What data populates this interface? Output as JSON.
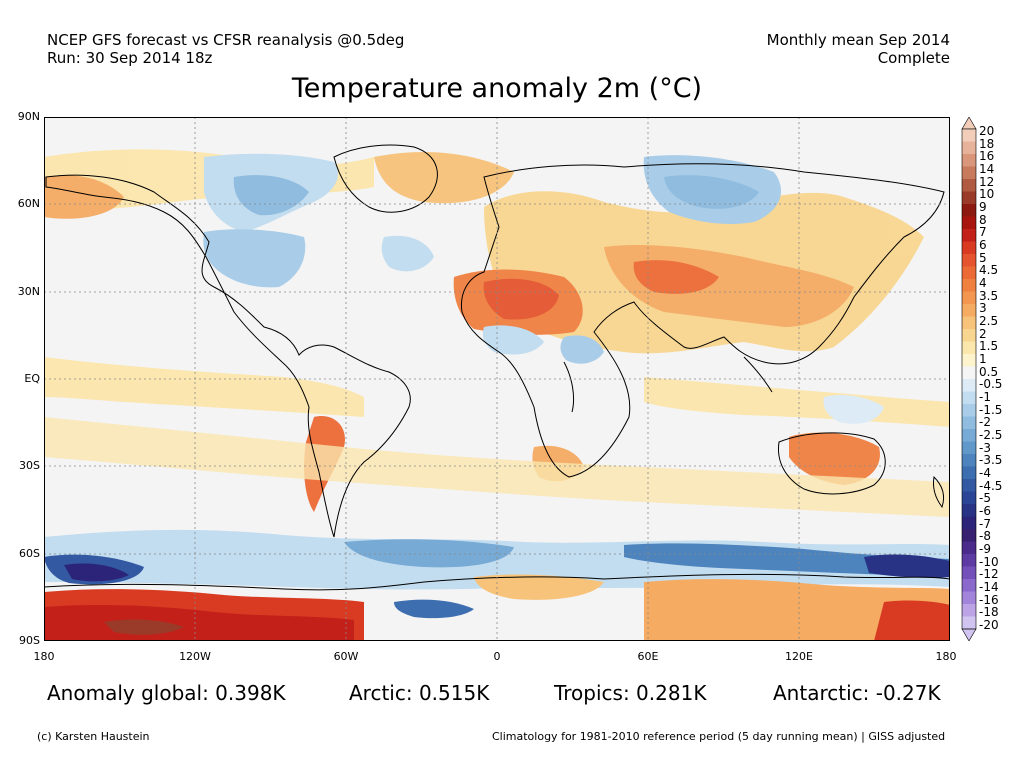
{
  "header": {
    "source_line": "NCEP GFS forecast vs CFSR reanalysis @0.5deg",
    "run_line": "Run: 30 Sep 2014 18z",
    "period_line": "Monthly mean Sep 2014",
    "status_line": "Complete"
  },
  "title": "Temperature anomaly 2m (°C)",
  "axes": {
    "lat_labels": [
      "90N",
      "60N",
      "30N",
      "EQ",
      "30S",
      "60S",
      "90S"
    ],
    "lon_labels": [
      "180",
      "120W",
      "60W",
      "0",
      "60E",
      "120E",
      "180"
    ]
  },
  "colorbar": {
    "labels": [
      "20",
      "18",
      "16",
      "14",
      "12",
      "10",
      "9",
      "8",
      "7",
      "6",
      "5",
      "4.5",
      "4",
      "3.5",
      "3",
      "2.5",
      "2",
      "1.5",
      "1",
      "0.5",
      "-0.5",
      "-1",
      "-1.5",
      "-2",
      "-2.5",
      "-3",
      "-3.5",
      "-4",
      "-4.5",
      "-5",
      "-6",
      "-7",
      "-8",
      "-9",
      "-10",
      "-12",
      "-14",
      "-16",
      "-18",
      "-20"
    ],
    "colors": [
      "#f2cdb9",
      "#e6b39a",
      "#d9967a",
      "#c87a5d",
      "#b15a42",
      "#9a3b2a",
      "#8c1a10",
      "#a8150f",
      "#c4201a",
      "#d93b22",
      "#e5542e",
      "#ec6a36",
      "#f08040",
      "#f29650",
      "#f5ab62",
      "#f7c279",
      "#f9d690",
      "#fbe6ab",
      "#fdf3cc",
      "#f5f5f5",
      "#dcebf6",
      "#c3ddf0",
      "#a9cde8",
      "#8fbcdf",
      "#77aad5",
      "#6198ca",
      "#4d84bd",
      "#3d6eb0",
      "#3259a2",
      "#2a4595",
      "#283386",
      "#2b2479",
      "#37206f",
      "#4a2a8a",
      "#5e3ba3",
      "#7450bb",
      "#8a68cc",
      "#a284db",
      "#bba3e6",
      "#d2c4f0"
    ]
  },
  "stats": {
    "global": "Anomaly global: 0.398K",
    "arctic": "Arctic: 0.515K",
    "tropics": "Tropics: 0.281K",
    "antarctic": "Antarctic: -0.27K"
  },
  "footer": {
    "credit": "(c) Karsten Haustein",
    "note": "Climatology for 1981-2010 reference period (5 day running mean) | GISS adjusted"
  }
}
